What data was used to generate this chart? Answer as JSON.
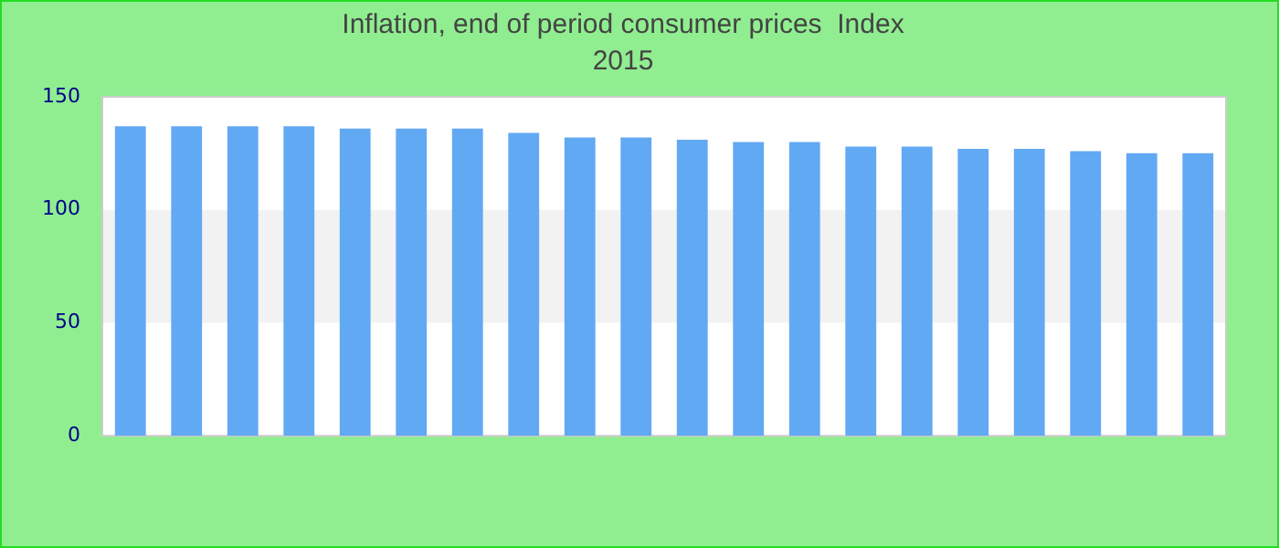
{
  "chart_data": {
    "type": "bar",
    "title": "Inflation, end of period consumer prices  Index",
    "subtitle": "2015",
    "categories": [
      null,
      null,
      null,
      null,
      null,
      null,
      null,
      null,
      null,
      null,
      null,
      null,
      null,
      null,
      null,
      null,
      null,
      null,
      null,
      null
    ],
    "values": [
      137,
      137,
      137,
      137,
      136,
      136,
      136,
      134,
      132,
      132,
      131,
      130,
      130,
      128,
      128,
      127,
      127,
      126,
      125,
      125
    ],
    "color": "#62a9f4",
    "ylim": [
      0,
      150
    ],
    "yticks": [
      0,
      50,
      100,
      150
    ],
    "grid": false,
    "bands": [
      {
        "axis": "y",
        "from": 50,
        "to": 100,
        "color": "#f2f2f2"
      }
    ]
  }
}
